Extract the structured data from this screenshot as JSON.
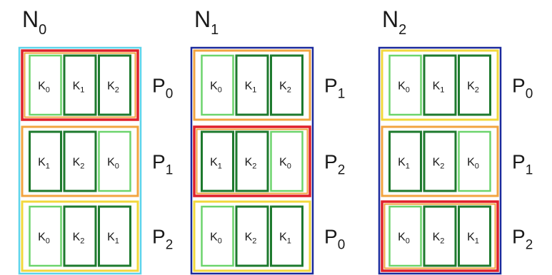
{
  "colors": {
    "background": "#ffffff",
    "outline_cyan": "#5ed4ea",
    "outline_navy": "#1c2a9c",
    "highlight_red": "#e0202a",
    "band_orange": "#f2a440",
    "band_yellow": "#f2d83c",
    "key_light_green": "#6cd46c",
    "key_dark_green": "#1d7a2d",
    "text": "#1a1a1a"
  },
  "diagram": {
    "nodes": [
      {
        "id": "N0",
        "main": "N",
        "sub": "0",
        "outline": "outline_cyan",
        "rows": [
          {
            "label_main": "P",
            "label_sub": "0",
            "band": "highlight_red",
            "cells": [
              {
                "main": "K",
                "sub": "0",
                "shade": "key_light_green"
              },
              {
                "main": "K",
                "sub": "1",
                "shade": "key_dark_green"
              },
              {
                "main": "K",
                "sub": "2",
                "shade": "key_dark_green"
              }
            ]
          },
          {
            "label_main": "P",
            "label_sub": "1",
            "band": "band_orange",
            "cells": [
              {
                "main": "K",
                "sub": "1",
                "shade": "key_dark_green"
              },
              {
                "main": "K",
                "sub": "2",
                "shade": "key_dark_green"
              },
              {
                "main": "K",
                "sub": "0",
                "shade": "key_light_green"
              }
            ]
          },
          {
            "label_main": "P",
            "label_sub": "2",
            "band": "band_yellow",
            "cells": [
              {
                "main": "K",
                "sub": "0",
                "shade": "key_light_green"
              },
              {
                "main": "K",
                "sub": "2",
                "shade": "key_dark_green"
              },
              {
                "main": "K",
                "sub": "1",
                "shade": "key_dark_green"
              }
            ]
          }
        ]
      },
      {
        "id": "N1",
        "main": "N",
        "sub": "1",
        "outline": "outline_navy",
        "rows": [
          {
            "label_main": "P",
            "label_sub": "1",
            "band": "band_orange",
            "cells": [
              {
                "main": "K",
                "sub": "0",
                "shade": "key_light_green"
              },
              {
                "main": "K",
                "sub": "1",
                "shade": "key_dark_green"
              },
              {
                "main": "K",
                "sub": "2",
                "shade": "key_dark_green"
              }
            ]
          },
          {
            "label_main": "P",
            "label_sub": "2",
            "band": "highlight_red",
            "cells": [
              {
                "main": "K",
                "sub": "1",
                "shade": "key_dark_green"
              },
              {
                "main": "K",
                "sub": "2",
                "shade": "key_dark_green"
              },
              {
                "main": "K",
                "sub": "0",
                "shade": "key_light_green"
              }
            ]
          },
          {
            "label_main": "P",
            "label_sub": "0",
            "band": "band_yellow",
            "cells": [
              {
                "main": "K",
                "sub": "0",
                "shade": "key_light_green"
              },
              {
                "main": "K",
                "sub": "2",
                "shade": "key_dark_green"
              },
              {
                "main": "K",
                "sub": "1",
                "shade": "key_dark_green"
              }
            ]
          }
        ]
      },
      {
        "id": "N2",
        "main": "N",
        "sub": "2",
        "outline": "outline_navy",
        "rows": [
          {
            "label_main": "P",
            "label_sub": "0",
            "band": "band_yellow",
            "cells": [
              {
                "main": "K",
                "sub": "0",
                "shade": "key_light_green"
              },
              {
                "main": "K",
                "sub": "1",
                "shade": "key_dark_green"
              },
              {
                "main": "K",
                "sub": "2",
                "shade": "key_dark_green"
              }
            ]
          },
          {
            "label_main": "P",
            "label_sub": "1",
            "band": "band_orange",
            "cells": [
              {
                "main": "K",
                "sub": "1",
                "shade": "key_dark_green"
              },
              {
                "main": "K",
                "sub": "2",
                "shade": "key_dark_green"
              },
              {
                "main": "K",
                "sub": "0",
                "shade": "key_light_green"
              }
            ]
          },
          {
            "label_main": "P",
            "label_sub": "2",
            "band": "highlight_red",
            "cells": [
              {
                "main": "K",
                "sub": "0",
                "shade": "key_light_green"
              },
              {
                "main": "K",
                "sub": "2",
                "shade": "key_dark_green"
              },
              {
                "main": "K",
                "sub": "1",
                "shade": "key_dark_green"
              }
            ]
          }
        ]
      }
    ]
  }
}
